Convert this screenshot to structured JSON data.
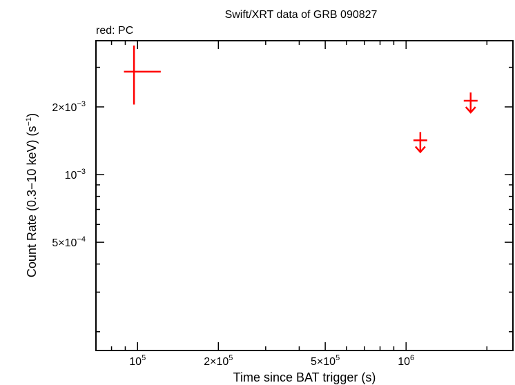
{
  "chart_data": {
    "type": "scatter",
    "title": "Swift/XRT data of GRB 090827",
    "subtitle": "red: PC",
    "xlabel": "Time since BAT trigger (s)",
    "ylabel": "Count Rate (0.3−10 keV) (s",
    "ylabel_sup": "−1",
    "ylabel_end": ")",
    "x_scale": "log",
    "y_scale": "log",
    "xlim": [
      70000,
      2500000
    ],
    "ylim": [
      0.000165,
      0.00394
    ],
    "x_ticks": [
      {
        "value": 100000,
        "mantissa": "10",
        "exp": "5"
      },
      {
        "value": 200000,
        "mantissa": "2×10",
        "exp": "5"
      },
      {
        "value": 500000,
        "mantissa": "5×10",
        "exp": "5"
      },
      {
        "value": 1000000,
        "mantissa": "10",
        "exp": "6"
      }
    ],
    "y_ticks": [
      {
        "value": 0.0005,
        "mantissa": "5×10",
        "exp": "−4"
      },
      {
        "value": 0.001,
        "mantissa": "10",
        "exp": "−3"
      },
      {
        "value": 0.002,
        "mantissa": "2×10",
        "exp": "−3"
      }
    ],
    "series": [
      {
        "color": "#ff0000",
        "points": [
          {
            "x": 97000,
            "xerr_low": 89000,
            "xerr_high": 122000,
            "y": 0.00287,
            "y_low": 0.00205,
            "y_high": 0.00375
          }
        ],
        "upper_limits": [
          {
            "x": 1130000,
            "y": 0.00142
          },
          {
            "x": 1740000,
            "y": 0.00213
          }
        ]
      }
    ]
  }
}
